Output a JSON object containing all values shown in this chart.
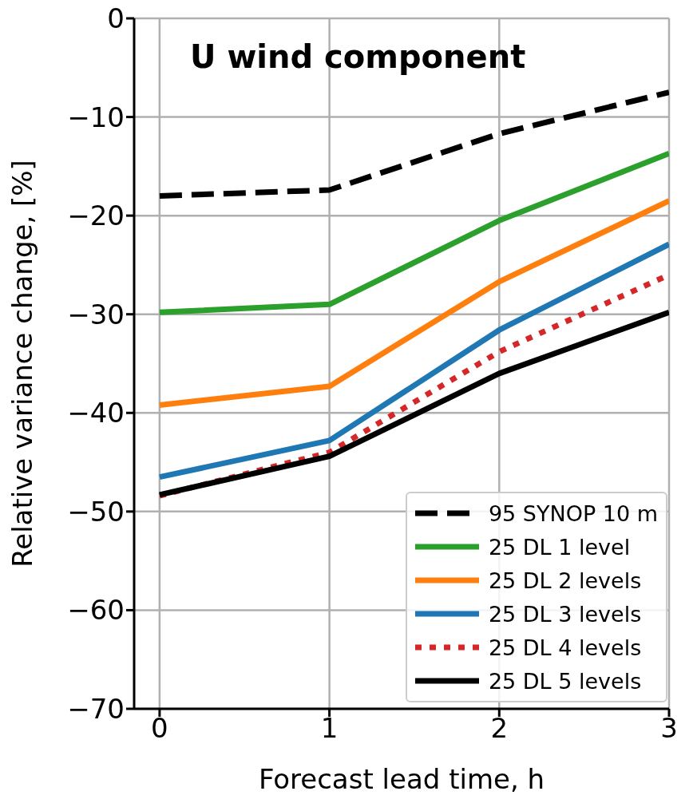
{
  "chart_data": {
    "type": "line",
    "title": "U wind component",
    "xlabel": "Forecast lead time, h",
    "ylabel": "Relative variance change, [%]",
    "x": [
      0,
      1,
      2,
      3
    ],
    "series": [
      {
        "name": "95 SYNOP 10 m",
        "color": "#000000",
        "line_style": "dashed",
        "values": [
          -18.0,
          -17.4,
          -11.7,
          -7.5
        ]
      },
      {
        "name": "25 DL 1 level",
        "color": "#2ca02c",
        "line_style": "solid",
        "values": [
          -29.8,
          -29.0,
          -20.5,
          -13.7
        ]
      },
      {
        "name": "25 DL 2 levels",
        "color": "#ff7f0e",
        "line_style": "solid",
        "values": [
          -39.2,
          -37.3,
          -26.7,
          -18.5
        ]
      },
      {
        "name": "25 DL 3 levels",
        "color": "#1f77b4",
        "line_style": "solid",
        "values": [
          -46.5,
          -42.8,
          -31.6,
          -22.9
        ]
      },
      {
        "name": "25 DL 4 levels",
        "color": "#d62728",
        "line_style": "dotted",
        "values": [
          -48.4,
          -44.0,
          -33.8,
          -26.0
        ]
      },
      {
        "name": "25 DL 5 levels",
        "color": "#000000",
        "line_style": "solid",
        "values": [
          -48.3,
          -44.4,
          -36.0,
          -29.8
        ]
      }
    ],
    "xlim": [
      -0.15,
      3
    ],
    "xticks": [
      0,
      1,
      2,
      3
    ],
    "ylim": [
      -70,
      0
    ],
    "yticks": [
      -70,
      -60,
      -50,
      -40,
      -30,
      -20,
      -10,
      0
    ],
    "grid": true,
    "legend": "bottom right",
    "marker": "none"
  }
}
